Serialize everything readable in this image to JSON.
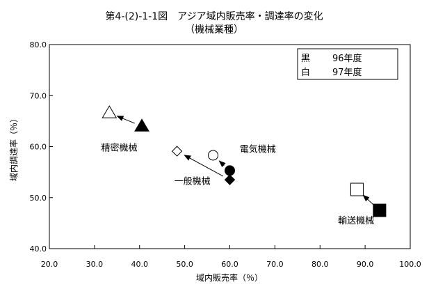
{
  "chart_data": {
    "type": "scatter",
    "title": "第4-(2)-1-1図　アジア域内販売率・調達率の変化",
    "subtitle": "（機械業種）",
    "xlabel": "域内販売率（％）",
    "ylabel": "域内調達率（％）",
    "xlim": [
      20.0,
      100.0
    ],
    "ylim": [
      40.0,
      80.0
    ],
    "x_ticks": [
      "20.0",
      "30.0",
      "40.0",
      "50.0",
      "60.0",
      "70.0",
      "80.0",
      "90.0",
      "100.0"
    ],
    "y_ticks": [
      "40.0",
      "50.0",
      "60.0",
      "70.0",
      "80.0"
    ],
    "grid": false,
    "legend": {
      "position": "top-right",
      "entries": [
        {
          "key": "黒",
          "label": "96年度",
          "fill": "#000000"
        },
        {
          "key": "白",
          "label": "97年度",
          "fill": "#ffffff"
        }
      ]
    },
    "series": [
      {
        "name": "96年度",
        "fill": "#000000",
        "points": [
          {
            "category": "精密機械",
            "shape": "triangle",
            "x": 40.5,
            "y": 64.0
          },
          {
            "category": "電気機械",
            "shape": "circle",
            "x": 60.0,
            "y": 55.3
          },
          {
            "category": "一般機械",
            "shape": "diamond",
            "x": 60.0,
            "y": 53.5
          },
          {
            "category": "輸送機械",
            "shape": "square",
            "x": 93.2,
            "y": 47.5
          }
        ]
      },
      {
        "name": "97年度",
        "fill": "#ffffff",
        "points": [
          {
            "category": "精密機械",
            "shape": "triangle",
            "x": 33.3,
            "y": 66.6
          },
          {
            "category": "電気機械",
            "shape": "circle",
            "x": 56.3,
            "y": 58.3
          },
          {
            "category": "一般機械",
            "shape": "diamond",
            "x": 48.3,
            "y": 59.1
          },
          {
            "category": "輸送機械",
            "shape": "square",
            "x": 88.2,
            "y": 51.6
          }
        ]
      }
    ],
    "annotations": [
      {
        "text": "精密機械",
        "x": 35.5,
        "y": 59.2
      },
      {
        "text": "電気機械",
        "x": 66.2,
        "y": 58.9
      },
      {
        "text": "一般機械",
        "x": 51.7,
        "y": 52.6
      },
      {
        "text": "輸送機械",
        "x": 88.0,
        "y": 44.9
      }
    ]
  }
}
